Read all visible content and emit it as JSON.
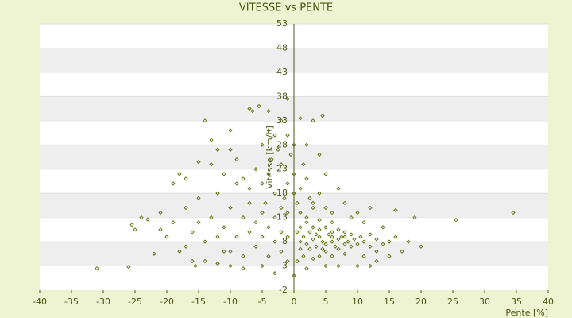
{
  "chart_data": {
    "type": "scatter",
    "title": "VITESSE vs PENTE",
    "x_label": "Pente [%]",
    "y_label": "Vitesse [km/h]",
    "color": "#5e6e0c",
    "band_color": "#eeeeee",
    "axis_color": "#4a5710",
    "xlim": [
      -40,
      40
    ],
    "xticks": [
      -40,
      -35,
      -30,
      -25,
      -20,
      -15,
      -10,
      -5,
      0,
      5,
      10,
      15,
      20,
      25,
      30,
      35,
      40
    ],
    "ylim": [
      -2,
      53
    ],
    "yticks": [
      -2,
      3,
      8,
      13,
      18,
      23,
      28,
      33,
      38,
      43,
      48,
      53
    ],
    "x": [
      -31,
      -26,
      -25.5,
      -24,
      -25,
      -23,
      -22,
      -21,
      -21,
      -19,
      -18,
      -17,
      -18,
      -16,
      -15.5,
      -14,
      -15,
      -13,
      -12,
      -10,
      -10,
      -7,
      -6.5,
      -5.5,
      -4,
      -1,
      1,
      3,
      4.5,
      -2,
      34.5,
      25.5,
      19,
      16,
      20,
      17,
      15,
      13,
      12,
      10,
      -5,
      -8,
      -10,
      -12,
      -3,
      0,
      2,
      5,
      7,
      1,
      1.5,
      2,
      2.5,
      3,
      3.5,
      4,
      4.5,
      5,
      5.5,
      6,
      6.5,
      7,
      7.5,
      8,
      8.5,
      9,
      9.5,
      10,
      11,
      12,
      3,
      4,
      5,
      6,
      7,
      8,
      2,
      4,
      6,
      1,
      2.5,
      5,
      7,
      9,
      10.5,
      12,
      13,
      14,
      3.5,
      6,
      8,
      4.5,
      1,
      0.5,
      -5,
      -4,
      -3,
      -2,
      -1,
      0,
      1,
      2,
      -1.5,
      0.5,
      -3.5,
      -2.5,
      -0.5,
      1.5,
      2.5,
      3,
      -4.5,
      -6,
      -7,
      -8,
      0,
      1,
      2,
      3,
      4,
      5,
      6,
      -1,
      -2,
      0,
      -1,
      -3,
      2,
      4,
      5,
      7,
      8,
      10,
      -5,
      -4,
      -19,
      -17,
      -16,
      -15,
      -14,
      -13,
      -12,
      -11,
      -11,
      -10,
      -9,
      -9,
      -8,
      -8,
      -7,
      -7,
      -6,
      -6,
      -5,
      -5,
      -4,
      -4,
      -3,
      -3,
      -2,
      -2,
      -1,
      -1,
      -13,
      -11,
      -9,
      -14,
      -12,
      -10,
      -17,
      -20,
      -15,
      0.5,
      1.5,
      3,
      4,
      6,
      8,
      11,
      13,
      15,
      16,
      18,
      14,
      11,
      9,
      12
    ],
    "values": [
      2.5,
      2.8,
      11.5,
      13,
      10.5,
      12.6,
      5.5,
      14,
      10.5,
      20,
      22,
      21,
      6,
      4,
      3,
      33,
      24.5,
      29,
      27,
      31,
      27,
      35.5,
      35,
      36,
      35,
      37.5,
      33.5,
      33,
      34,
      33,
      14,
      12.5,
      13,
      14.5,
      7,
      6,
      8,
      4,
      3,
      3,
      3,
      2.5,
      3,
      3.5,
      1.5,
      1,
      2.5,
      3,
      3,
      8,
      9,
      7.5,
      10,
      8.5,
      7,
      9,
      8,
      7.5,
      9.5,
      8,
      7,
      8.5,
      9,
      7.5,
      8,
      7,
      8.5,
      7.5,
      8,
      7,
      11,
      10.5,
      11,
      10,
      10.5,
      10,
      12,
      12.5,
      12,
      11,
      6.5,
      6,
      6.5,
      9.5,
      9,
      9.5,
      8.5,
      7.5,
      9.5,
      9,
      9,
      6.5,
      6.5,
      10,
      20,
      22,
      18,
      24,
      20,
      22,
      19,
      21,
      17,
      16,
      25,
      27,
      26,
      24,
      17,
      15,
      16,
      23,
      19,
      21,
      18,
      14,
      13,
      16,
      18,
      15,
      14,
      14,
      15,
      28,
      30,
      30,
      28,
      26,
      22,
      19,
      16,
      14,
      28,
      31,
      12,
      15,
      10,
      17,
      8,
      13,
      18,
      6,
      11,
      15,
      9,
      20,
      13,
      5,
      10,
      16,
      7,
      12,
      9,
      14,
      5,
      11,
      8,
      13,
      6,
      10,
      4,
      9,
      24,
      22,
      25,
      4,
      9,
      6,
      7,
      9,
      12,
      4,
      5,
      4.5,
      5,
      5,
      5.5,
      5,
      6,
      5,
      9,
      8,
      11,
      12,
      13,
      15
    ]
  }
}
